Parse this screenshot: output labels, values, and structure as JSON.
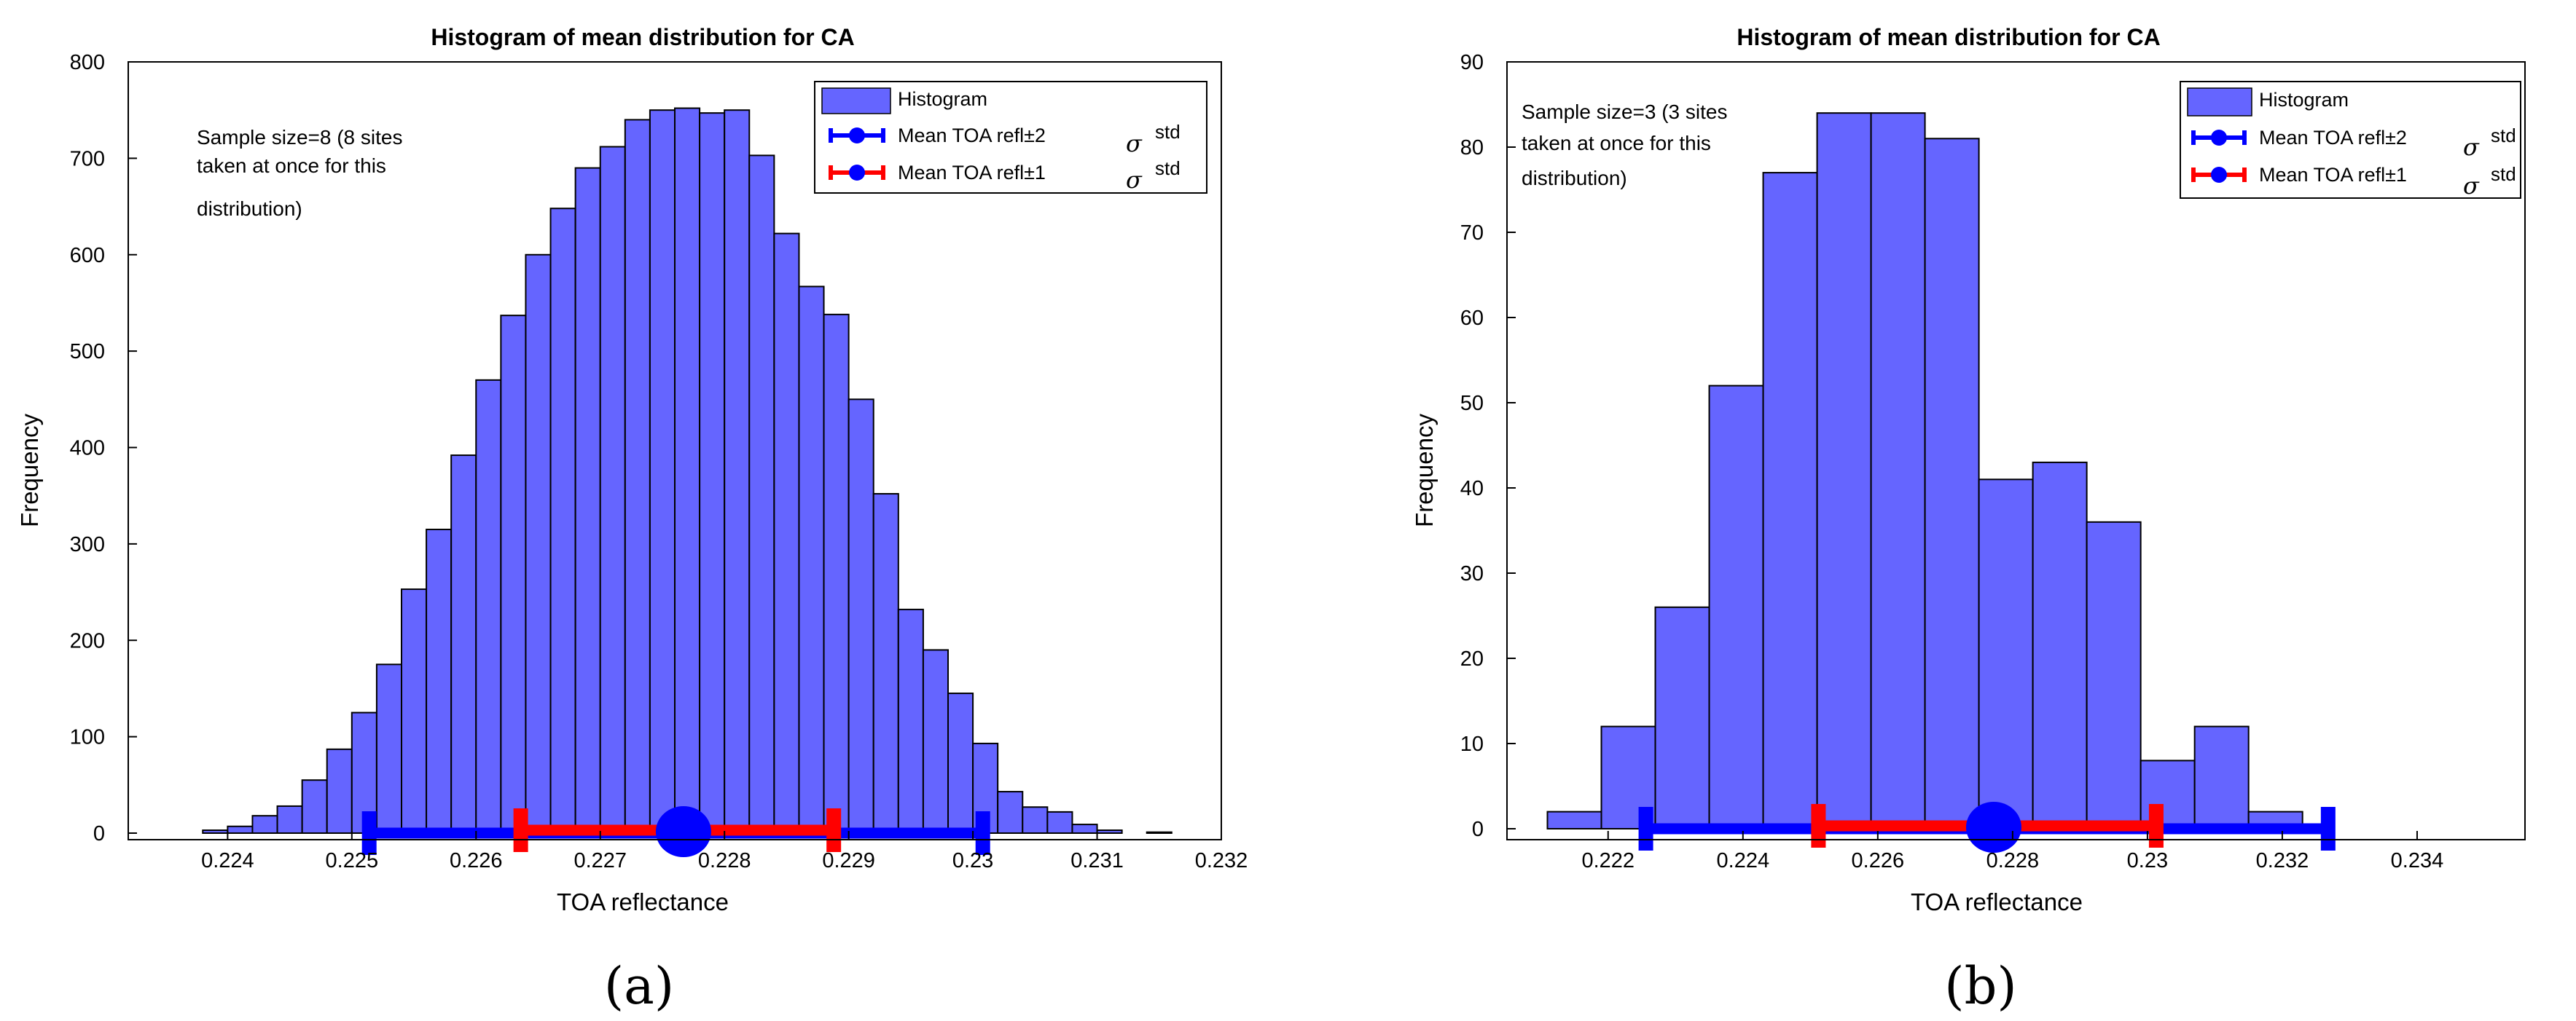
{
  "figure_labels": [
    "(a)",
    "(b)"
  ],
  "chart_data": [
    {
      "type": "bar",
      "panel_label": "(a)",
      "title": "Histogram of mean distribution for CA",
      "xlabel": "TOA reflectance",
      "ylabel": "Frequency",
      "xlim": [
        0.2232,
        0.232
      ],
      "ylim": [
        0,
        800
      ],
      "xticks": [
        0.224,
        0.225,
        0.226,
        0.227,
        0.228,
        0.229,
        0.23,
        0.231,
        0.232
      ],
      "xtick_labels": [
        "0.224",
        "0.225",
        "0.226",
        "0.227",
        "0.228",
        "0.229",
        "0.23",
        "0.231",
        "0.232"
      ],
      "yticks": [
        0,
        100,
        200,
        300,
        400,
        500,
        600,
        700,
        800
      ],
      "ytick_labels": [
        "0",
        "100",
        "200",
        "300",
        "400",
        "500",
        "600",
        "700",
        "800"
      ],
      "bin_edges_start": 0.2236,
      "bin_width": 0.0002,
      "values": [
        0,
        3,
        7,
        18,
        28,
        55,
        87,
        125,
        175,
        253,
        315,
        392,
        470,
        537,
        600,
        648,
        690,
        712,
        740,
        750,
        752,
        747,
        750,
        703,
        622,
        567,
        538,
        450,
        352,
        232,
        190,
        145,
        93,
        43,
        27,
        22,
        9,
        3,
        0,
        1
      ],
      "mean": 0.22767,
      "std_1_range": [
        0.22636,
        0.22888
      ],
      "std_2_range": [
        0.22514,
        0.23008
      ],
      "annotation": [
        "Sample size=8 (8 sites",
        "taken at once for this",
        "distribution)"
      ],
      "legend": {
        "position": "top-right",
        "entries": [
          "Histogram",
          "Mean TOA refl±2",
          "Mean TOA refl±1"
        ],
        "sigma_symbol": "σ",
        "sigma_superscript": "std"
      },
      "colors": {
        "bar": "#6565ff",
        "two_sigma": "#0000ff",
        "one_sigma": "#ff0000",
        "mean": "#0000ff"
      }
    },
    {
      "type": "bar",
      "panel_label": "(b)",
      "title": "Histogram of mean distribution for CA",
      "xlabel": "TOA reflectance",
      "ylabel": "Frequency",
      "xlim": [
        0.2205,
        0.2356
      ],
      "ylim": [
        0,
        90
      ],
      "xticks": [
        0.222,
        0.224,
        0.226,
        0.228,
        0.23,
        0.232,
        0.234
      ],
      "xtick_labels": [
        "0.222",
        "0.224",
        "0.226",
        "0.228",
        "0.23",
        "0.232",
        "0.234"
      ],
      "yticks": [
        0,
        10,
        20,
        30,
        40,
        50,
        60,
        70,
        80,
        90
      ],
      "ytick_labels": [
        "0",
        "10",
        "20",
        "30",
        "40",
        "50",
        "60",
        "70",
        "80",
        "90"
      ],
      "bin_edges_start": 0.2211,
      "bin_width": 0.0008,
      "values": [
        2,
        12,
        26,
        52,
        77,
        84,
        84,
        81,
        41,
        43,
        36,
        8,
        12,
        2
      ],
      "mean": 0.22772,
      "std_1_range": [
        0.22512,
        0.23013
      ],
      "std_2_range": [
        0.22256,
        0.23268
      ],
      "annotation": [
        "Sample size=3 (3 sites",
        "taken at once for this",
        "distribution)"
      ],
      "legend": {
        "position": "top-right",
        "entries": [
          "Histogram",
          "Mean TOA refl±2",
          "Mean TOA refl±1"
        ],
        "sigma_symbol": "σ",
        "sigma_superscript": "std"
      },
      "colors": {
        "bar": "#6565ff",
        "two_sigma": "#0000ff",
        "one_sigma": "#ff0000",
        "mean": "#0000ff"
      }
    }
  ]
}
